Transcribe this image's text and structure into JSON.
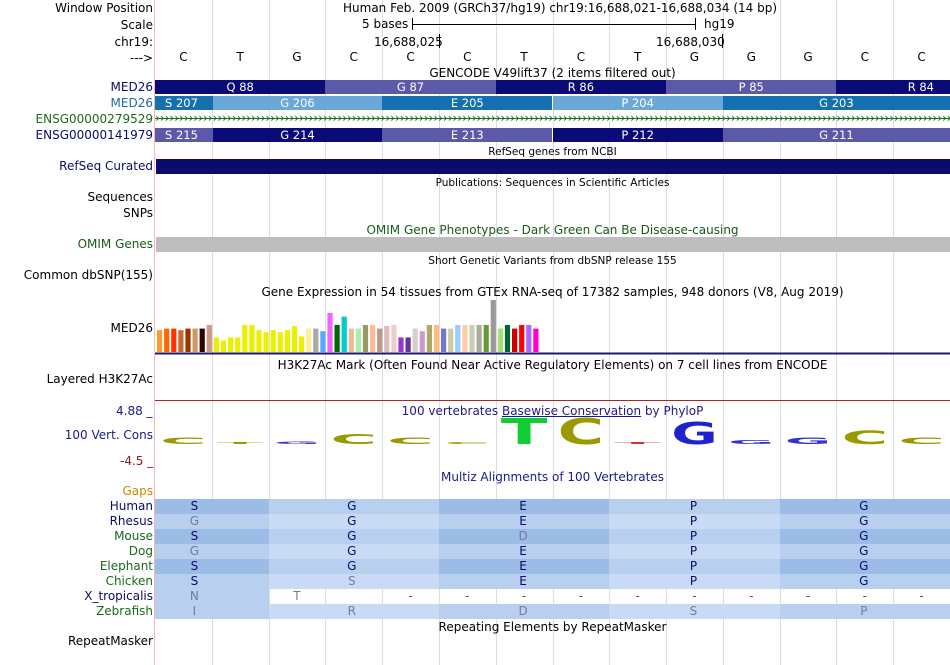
{
  "header": {
    "window_position_label": "Window Position",
    "scale_label": "Scale",
    "chrom_label": "chr19:",
    "strand_label": "--->",
    "assembly_text": "Human Feb. 2009 (GRCh37/hg19)   chr19:16,688,021-16,688,034 (14 bp)",
    "scale_bases": "5 bases",
    "scale_db": "hg19",
    "coord_left": "16,688,025",
    "coord_right": "16,688,030",
    "bases": [
      "C",
      "T",
      "G",
      "C",
      "C",
      "C",
      "T",
      "C",
      "T",
      "G",
      "G",
      "G",
      "C",
      "C"
    ]
  },
  "gencode": {
    "title": "GENCODE V49lift37 (2 items filtered out)",
    "tracks": [
      {
        "label": "MED26",
        "color": "#0b0b6e",
        "segments": [
          {
            "text": "Q 88",
            "fill": "#0b0b78",
            "align": "center"
          },
          {
            "text": "G 87",
            "fill": "#5a5aa8",
            "align": "center"
          },
          {
            "text": "R 86",
            "fill": "#0b0b78",
            "align": "center"
          },
          {
            "text": "P 85",
            "fill": "#5a5aa8",
            "align": "center"
          },
          {
            "text": "R 84",
            "fill": "#0b0b78",
            "align": "right"
          }
        ]
      },
      {
        "label": "MED26",
        "color": "#1a6aa8",
        "segments": [
          {
            "text": "S 207",
            "fill": "#1570b0",
            "align": "left"
          },
          {
            "text": "G 206",
            "fill": "#6aa8d8",
            "align": "center"
          },
          {
            "text": "E 205",
            "fill": "#1570b0",
            "align": "center"
          },
          {
            "text": "P 204",
            "fill": "#6aa8d8",
            "align": "center"
          },
          {
            "text": "G 203",
            "fill": "#1570b0",
            "align": "center"
          }
        ]
      },
      {
        "label": "ENSG00000279529",
        "color": "#1a6a1a",
        "arrows": "›"
      },
      {
        "label": "ENSG00000141979",
        "color": "#0b0b6e",
        "segments": [
          {
            "text": "S 215",
            "fill": "#5a5aa8",
            "align": "left"
          },
          {
            "text": "G 214",
            "fill": "#0b0b78",
            "align": "center"
          },
          {
            "text": "E 213",
            "fill": "#5a5aa8",
            "align": "center"
          },
          {
            "text": "P 212",
            "fill": "#0b0b78",
            "align": "center"
          },
          {
            "text": "G 211",
            "fill": "#5a5aa8",
            "align": "center"
          }
        ]
      }
    ]
  },
  "refseq": {
    "title": "RefSeq genes from NCBI",
    "label": "RefSeq Curated",
    "color": "#0b0b6e"
  },
  "publications": {
    "title": "Publications: Sequences in Scientific Articles",
    "label": "Sequences"
  },
  "snps_label": "SNPs",
  "omim": {
    "title": "OMIM Gene Phenotypes - Dark Green Can Be Disease-causing",
    "label": "OMIM Genes",
    "color": "#1a5a1a"
  },
  "dbsnp": {
    "title": "Short Genetic Variants from dbSNP release 155",
    "label": "Common dbSNP(155)"
  },
  "gtex": {
    "title": "Gene Expression in 54 tissues from GTEx RNA-seq of 17382 samples, 948 donors (V8, Aug 2019)",
    "label": "MED26",
    "bars": [
      {
        "h": 0.42,
        "c": "#ff9933"
      },
      {
        "h": 0.45,
        "c": "#ff6600"
      },
      {
        "h": 0.45,
        "c": "#ff3300"
      },
      {
        "h": 0.42,
        "c": "#cc6633"
      },
      {
        "h": 0.45,
        "c": "#993300"
      },
      {
        "h": 0.45,
        "c": "#cc9966"
      },
      {
        "h": 0.45,
        "c": "#330000"
      },
      {
        "h": 0.52,
        "c": "#cc9988"
      },
      {
        "h": 0.28,
        "c": "#eeee00"
      },
      {
        "h": 0.22,
        "c": "#eeee00"
      },
      {
        "h": 0.28,
        "c": "#eeee00"
      },
      {
        "h": 0.28,
        "c": "#eeee00"
      },
      {
        "h": 0.52,
        "c": "#eeee00"
      },
      {
        "h": 0.52,
        "c": "#eeee00"
      },
      {
        "h": 0.42,
        "c": "#eeee00"
      },
      {
        "h": 0.38,
        "c": "#eeee00"
      },
      {
        "h": 0.42,
        "c": "#eeee00"
      },
      {
        "h": 0.38,
        "c": "#eeee00"
      },
      {
        "h": 0.42,
        "c": "#eeee00"
      },
      {
        "h": 0.5,
        "c": "#eeee00"
      },
      {
        "h": 0.3,
        "c": "#eeee00"
      },
      {
        "h": 0.45,
        "c": "#ffee99"
      },
      {
        "h": 0.45,
        "c": "#aaaaaa"
      },
      {
        "h": 0.4,
        "c": "#55aaff"
      },
      {
        "h": 0.75,
        "c": "#ee66ff"
      },
      {
        "h": 0.52,
        "c": "#006600"
      },
      {
        "h": 0.68,
        "c": "#00cccc"
      },
      {
        "h": 0.45,
        "c": "#eebb99"
      },
      {
        "h": 0.45,
        "c": "#aaeeaa"
      },
      {
        "h": 0.52,
        "c": "#999966"
      },
      {
        "h": 0.52,
        "c": "#ffbb99"
      },
      {
        "h": 0.45,
        "c": "#bb9988"
      },
      {
        "h": 0.5,
        "c": "#ddbbbb"
      },
      {
        "h": 0.52,
        "c": "#eecccc"
      },
      {
        "h": 0.28,
        "c": "#9933cc"
      },
      {
        "h": 0.28,
        "c": "#663399"
      },
      {
        "h": 0.45,
        "c": "#ddcccc"
      },
      {
        "h": 0.4,
        "c": "#cc99cc"
      },
      {
        "h": 0.52,
        "c": "#aaaa66"
      },
      {
        "h": 0.52,
        "c": "#ffbb77"
      },
      {
        "h": 0.45,
        "c": "#7777cc"
      },
      {
        "h": 0.45,
        "c": "#ccccaa"
      },
      {
        "h": 0.52,
        "c": "#99ccff"
      },
      {
        "h": 0.52,
        "c": "#ffccaa"
      },
      {
        "h": 0.52,
        "c": "#ccccbb"
      },
      {
        "h": 0.52,
        "c": "#aaaa99"
      },
      {
        "h": 0.52,
        "c": "#669933"
      },
      {
        "h": 1.0,
        "c": "#999999"
      },
      {
        "h": 0.45,
        "c": "#aadd77"
      },
      {
        "h": 0.52,
        "c": "#006633"
      },
      {
        "h": 0.45,
        "c": "#cc0000"
      },
      {
        "h": 0.52,
        "c": "#ff0000"
      },
      {
        "h": 0.52,
        "c": "#aa66ff"
      },
      {
        "h": 0.45,
        "c": "#ff00cc"
      }
    ]
  },
  "h3k27ac": {
    "title": "H3K27Ac Mark (Often Found Near Active Regulatory Elements) on 7 cell lines from ENCODE",
    "label": "Layered H3K27Ac"
  },
  "conservation": {
    "title_prefix": "100 vertebrates ",
    "title_link": "Basewise Conservation",
    "title_suffix": " by PhyloP",
    "label": "100 Vert. Cons",
    "max": "4.88 _",
    "min": "-4.5 _",
    "logo": [
      {
        "ch": "C",
        "h": 0.22,
        "c": "#999900"
      },
      {
        "ch": "T",
        "h": 0.03,
        "c": "#999900"
      },
      {
        "ch": "G",
        "h": 0.08,
        "c": "#3333cc"
      },
      {
        "ch": "C",
        "h": 0.32,
        "c": "#999900"
      },
      {
        "ch": "C",
        "h": 0.22,
        "c": "#999900"
      },
      {
        "ch": "C",
        "h": 0.06,
        "c": "#999900"
      },
      {
        "ch": "T",
        "h": 0.85,
        "c": "#11cc33"
      },
      {
        "ch": "C",
        "h": 0.85,
        "c": "#999900"
      },
      {
        "ch": "T",
        "h": 0.03,
        "c": "#cc3333"
      },
      {
        "ch": "G",
        "h": 0.72,
        "c": "#2222cc"
      },
      {
        "ch": "G",
        "h": 0.12,
        "c": "#3333cc"
      },
      {
        "ch": "G",
        "h": 0.22,
        "c": "#3333cc"
      },
      {
        "ch": "C",
        "h": 0.45,
        "c": "#999900"
      },
      {
        "ch": "C",
        "h": 0.22,
        "c": "#999900"
      }
    ]
  },
  "multiz": {
    "title": "Multiz Alignments of 100 Vertebrates",
    "gaps_label": "Gaps",
    "rows": [
      {
        "name": "Human",
        "color": "#0b0b6e",
        "shade": "#9cbce8",
        "chars": [
          {
            "c": "S",
            "p": 0
          },
          {
            "c": "G",
            "p": 1
          },
          {
            "c": "E",
            "p": 2
          },
          {
            "c": "P",
            "p": 3
          },
          {
            "c": "G",
            "p": 4
          }
        ],
        "dim": []
      },
      {
        "name": "Rhesus",
        "color": "#0b0b6e",
        "shade": "#b8cff0",
        "chars": [
          {
            "c": "G",
            "p": 0
          },
          {
            "c": "G",
            "p": 1
          },
          {
            "c": "E",
            "p": 2
          },
          {
            "c": "P",
            "p": 3
          },
          {
            "c": "G",
            "p": 4
          }
        ],
        "dim": [
          0
        ]
      },
      {
        "name": "Mouse",
        "color": "#1a6a1a",
        "shade": "#9cbce8",
        "chars": [
          {
            "c": "S",
            "p": 0
          },
          {
            "c": "G",
            "p": 1
          },
          {
            "c": "D",
            "p": 2
          },
          {
            "c": "P",
            "p": 3
          },
          {
            "c": "G",
            "p": 4
          }
        ],
        "dim": [
          2
        ]
      },
      {
        "name": "Dog",
        "color": "#1a6a1a",
        "shade": "#b8cff0",
        "chars": [
          {
            "c": "G",
            "p": 0
          },
          {
            "c": "G",
            "p": 1
          },
          {
            "c": "E",
            "p": 2
          },
          {
            "c": "P",
            "p": 3
          },
          {
            "c": "G",
            "p": 4
          }
        ],
        "dim": [
          0
        ]
      },
      {
        "name": "Elephant",
        "color": "#1a6a1a",
        "shade": "#9cbce8",
        "chars": [
          {
            "c": "S",
            "p": 0
          },
          {
            "c": "G",
            "p": 1
          },
          {
            "c": "E",
            "p": 2
          },
          {
            "c": "P",
            "p": 3
          },
          {
            "c": "G",
            "p": 4
          }
        ],
        "dim": []
      },
      {
        "name": "Chicken",
        "color": "#1a6a1a",
        "shade": "#b8cff0",
        "chars": [
          {
            "c": "S",
            "p": 0
          },
          {
            "c": "S",
            "p": 1
          },
          {
            "c": "E",
            "p": 2
          },
          {
            "c": "P",
            "p": 3
          },
          {
            "c": "G",
            "p": 4
          }
        ],
        "dim": [
          1
        ]
      },
      {
        "name": "X_tropicalis",
        "color": "#0b0b6e",
        "shade": "none",
        "chars": [
          {
            "c": "N",
            "p": 0
          },
          {
            "c": "T",
            "p": -1
          }
        ],
        "dashes": true,
        "dim": [
          0
        ]
      },
      {
        "name": "Zebrafish",
        "color": "#1a6a1a",
        "shade": "#b8cff0",
        "chars": [
          {
            "c": "I",
            "p": 0
          },
          {
            "c": "R",
            "p": 1
          },
          {
            "c": "D",
            "p": 2
          },
          {
            "c": "S",
            "p": 3
          },
          {
            "c": "P",
            "p": 4
          }
        ],
        "dim": [
          0,
          1,
          2,
          3,
          4
        ]
      }
    ]
  },
  "repeatmasker": {
    "title": "Repeating Elements by RepeatMasker",
    "label": "RepeatMasker"
  }
}
